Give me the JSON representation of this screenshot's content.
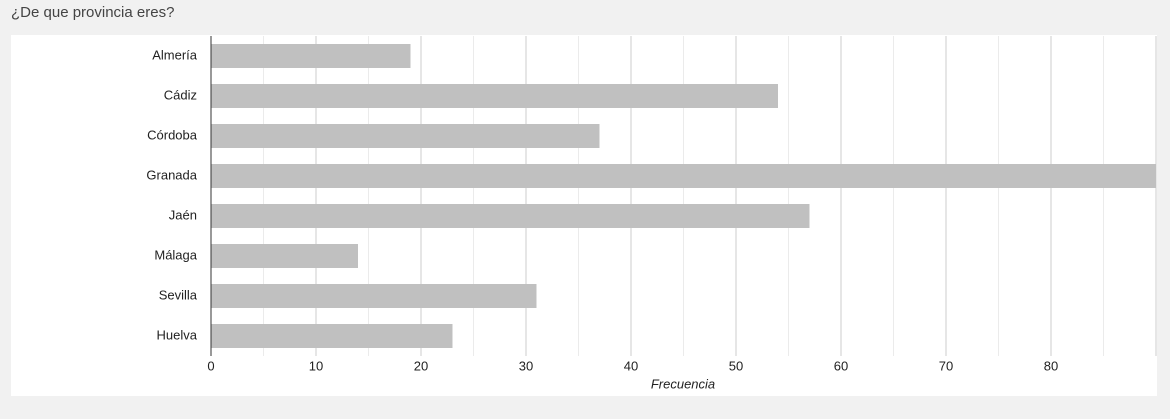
{
  "header": {
    "question": "¿De que provincia eres?"
  },
  "chart_data": {
    "type": "bar",
    "orientation": "horizontal",
    "x_label": "Frecuencia",
    "categories": [
      "Almería",
      "Cádiz",
      "Córdoba",
      "Granada",
      "Jaén",
      "Málaga",
      "Sevilla",
      "Huelva"
    ],
    "values": [
      19,
      54,
      37,
      90,
      57,
      14,
      31,
      23
    ],
    "color": "#c0c0c0",
    "xlim": [
      0,
      90
    ],
    "xticks": [
      0,
      10,
      20,
      30,
      40,
      50,
      60,
      70,
      80
    ],
    "grid": true,
    "minor_grid": true
  }
}
